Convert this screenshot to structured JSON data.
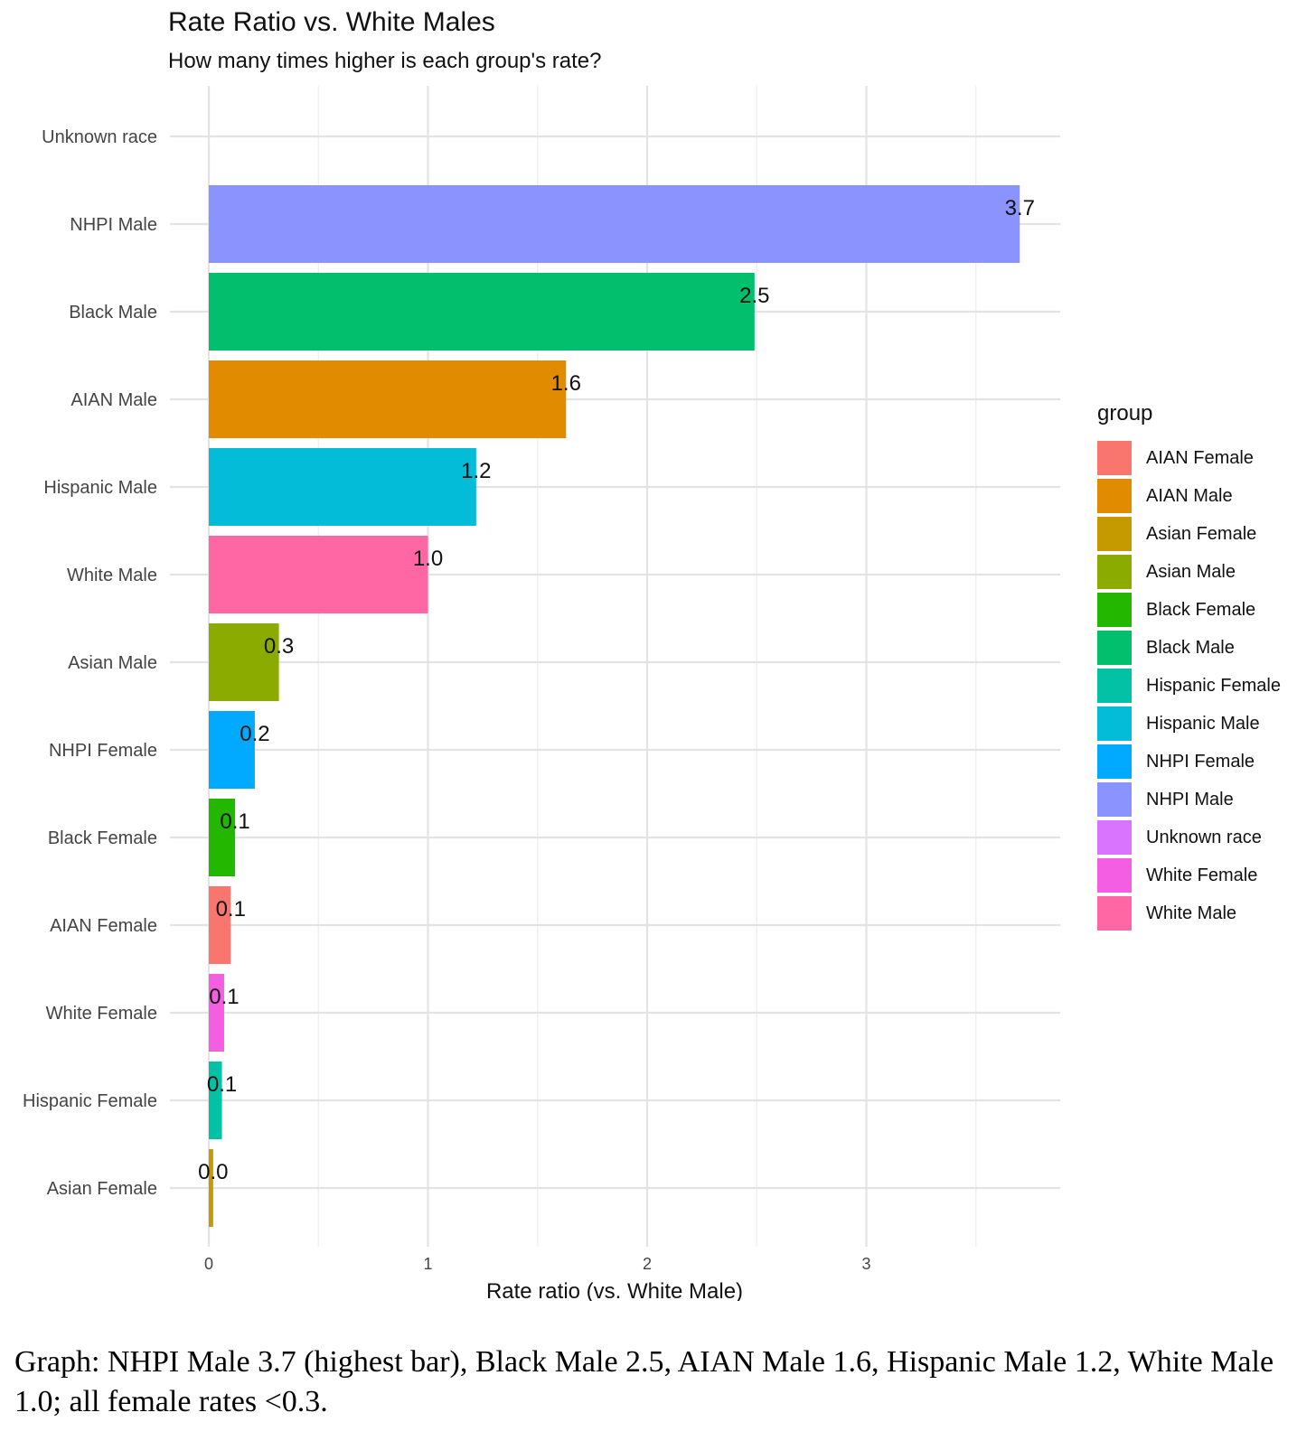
{
  "chart_data": {
    "type": "bar",
    "orientation": "horizontal",
    "title": "Rate Ratio vs. White Males",
    "subtitle": "How many times higher is each group's rate?",
    "xlabel": "Rate ratio (vs. White Male)",
    "ylabel": "",
    "xlim": [
      0,
      3.89
    ],
    "xticks": [
      0,
      1,
      2,
      3
    ],
    "xtick_labels": [
      "0",
      "1",
      "2",
      "3"
    ],
    "grid": true,
    "legend_position": "right",
    "legend_title": "group",
    "categories": [
      "Unknown race",
      "NHPI Male",
      "Black Male",
      "AIAN Male",
      "Hispanic Male",
      "White Male",
      "Asian Male",
      "NHPI Female",
      "Black Female",
      "AIAN Female",
      "White Female",
      "Hispanic Female",
      "Asian Female"
    ],
    "values": [
      null,
      3.7,
      2.49,
      1.63,
      1.22,
      1.0,
      0.32,
      0.21,
      0.12,
      0.1,
      0.07,
      0.06,
      0.02
    ],
    "data_labels": [
      "",
      "3.7",
      "2.5",
      "1.6",
      "1.2",
      "1.0",
      "0.3",
      "0.2",
      "0.1",
      "0.1",
      "0.1",
      "0.1",
      "0.0"
    ],
    "bar_colors": [
      "#D874FD",
      "#8B93FF",
      "#02BF6E",
      "#E08B00",
      "#03BCD8",
      "#FF67A4",
      "#8BAB00",
      "#01A9FF",
      "#23B700",
      "#F8766D",
      "#F35EE2",
      "#02C1A5",
      "#C49A00"
    ],
    "legend": [
      {
        "label": "AIAN Female",
        "color": "#F8766D"
      },
      {
        "label": "AIAN Male",
        "color": "#E08B00"
      },
      {
        "label": "Asian Female",
        "color": "#C49A00"
      },
      {
        "label": "Asian Male",
        "color": "#8BAB00"
      },
      {
        "label": "Black Female",
        "color": "#23B700"
      },
      {
        "label": "Black Male",
        "color": "#02BF6E"
      },
      {
        "label": "Hispanic Female",
        "color": "#02C1A5"
      },
      {
        "label": "Hispanic Male",
        "color": "#03BCD8"
      },
      {
        "label": "NHPI Female",
        "color": "#01A9FF"
      },
      {
        "label": "NHPI Male",
        "color": "#8B93FF"
      },
      {
        "label": "Unknown race",
        "color": "#D874FD"
      },
      {
        "label": "White Female",
        "color": "#F35EE2"
      },
      {
        "label": "White Male",
        "color": "#FF67A4"
      }
    ]
  },
  "caption": "Graph: NHPI Male 3.7 (highest bar), Black Male 2.5, AIAN Male 1.6, Hispanic Male 1.2, White Male 1.0; all female rates <0.3."
}
